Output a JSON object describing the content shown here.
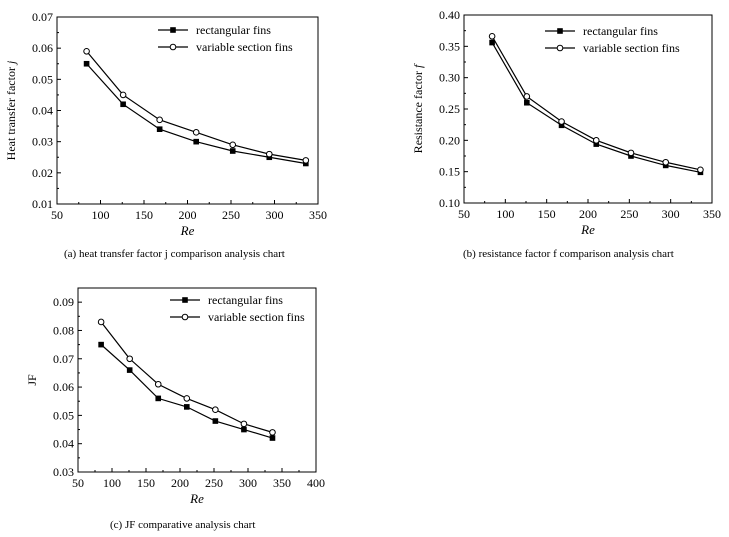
{
  "chart_data": [
    {
      "type": "line",
      "xlabel": "Re",
      "ylabel": "Heat transfer factor j",
      "caption": "(a) heat transfer factor j comparison analysis chart",
      "xlim": [
        50,
        350
      ],
      "ylim": [
        0.01,
        0.07
      ],
      "xticks": [
        50,
        100,
        150,
        200,
        250,
        300,
        350
      ],
      "yticks": [
        0.01,
        0.02,
        0.03,
        0.04,
        0.05,
        0.06,
        0.07
      ],
      "xtick_labels": [
        "50",
        "100",
        "150",
        "200",
        "250",
        "300",
        "350"
      ],
      "ytick_labels": [
        "0.01",
        "0.02",
        "0.03",
        "0.04",
        "0.05",
        "0.06",
        "0.07"
      ],
      "legend_position": "top-right",
      "x": [
        84,
        126,
        168,
        210,
        252,
        294,
        336
      ],
      "series": [
        {
          "name": "rectangular fins",
          "marker": "filled-square",
          "values": [
            0.055,
            0.042,
            0.034,
            0.03,
            0.027,
            0.025,
            0.023
          ]
        },
        {
          "name": "variable section fins",
          "marker": "open-circle",
          "values": [
            0.059,
            0.045,
            0.037,
            0.033,
            0.029,
            0.026,
            0.024
          ]
        }
      ]
    },
    {
      "type": "line",
      "xlabel": "Re",
      "ylabel": "Resistance factor f",
      "caption": "(b) resistance factor f comparison analysis chart",
      "xlim": [
        50,
        350
      ],
      "ylim": [
        0.1,
        0.4
      ],
      "xticks": [
        50,
        100,
        150,
        200,
        250,
        300,
        350
      ],
      "yticks": [
        0.1,
        0.15,
        0.2,
        0.25,
        0.3,
        0.35,
        0.4
      ],
      "xtick_labels": [
        "50",
        "100",
        "150",
        "200",
        "250",
        "300",
        "350"
      ],
      "ytick_labels": [
        "0.10",
        "0.15",
        "0.20",
        "0.25",
        "0.30",
        "0.35",
        "0.40"
      ],
      "legend_position": "top-right",
      "x": [
        84,
        126,
        168,
        210,
        252,
        294,
        336
      ],
      "series": [
        {
          "name": "rectangular fins",
          "marker": "filled-square",
          "values": [
            0.356,
            0.26,
            0.224,
            0.194,
            0.175,
            0.16,
            0.149
          ]
        },
        {
          "name": "variable section fins",
          "marker": "open-circle",
          "values": [
            0.366,
            0.27,
            0.23,
            0.2,
            0.18,
            0.165,
            0.153
          ]
        }
      ]
    },
    {
      "type": "line",
      "xlabel": "Re",
      "ylabel": "JF",
      "caption": "(c) JF comparative analysis chart",
      "xlim": [
        50,
        400
      ],
      "ylim": [
        0.03,
        0.095
      ],
      "xticks": [
        50,
        100,
        150,
        200,
        250,
        300,
        350,
        400
      ],
      "yticks": [
        0.03,
        0.04,
        0.05,
        0.06,
        0.07,
        0.08,
        0.09
      ],
      "xtick_labels": [
        "50",
        "100",
        "150",
        "200",
        "250",
        "300",
        "350",
        "400"
      ],
      "ytick_labels": [
        "0.03",
        "0.04",
        "0.05",
        "0.06",
        "0.07",
        "0.08",
        "0.09"
      ],
      "legend_position": "top-right",
      "x": [
        84,
        126,
        168,
        210,
        252,
        294,
        336
      ],
      "series": [
        {
          "name": "rectangular fins",
          "marker": "filled-square",
          "values": [
            0.075,
            0.066,
            0.056,
            0.053,
            0.048,
            0.045,
            0.042
          ]
        },
        {
          "name": "variable section fins",
          "marker": "open-circle",
          "values": [
            0.083,
            0.07,
            0.061,
            0.056,
            0.052,
            0.047,
            0.044
          ]
        }
      ]
    }
  ]
}
